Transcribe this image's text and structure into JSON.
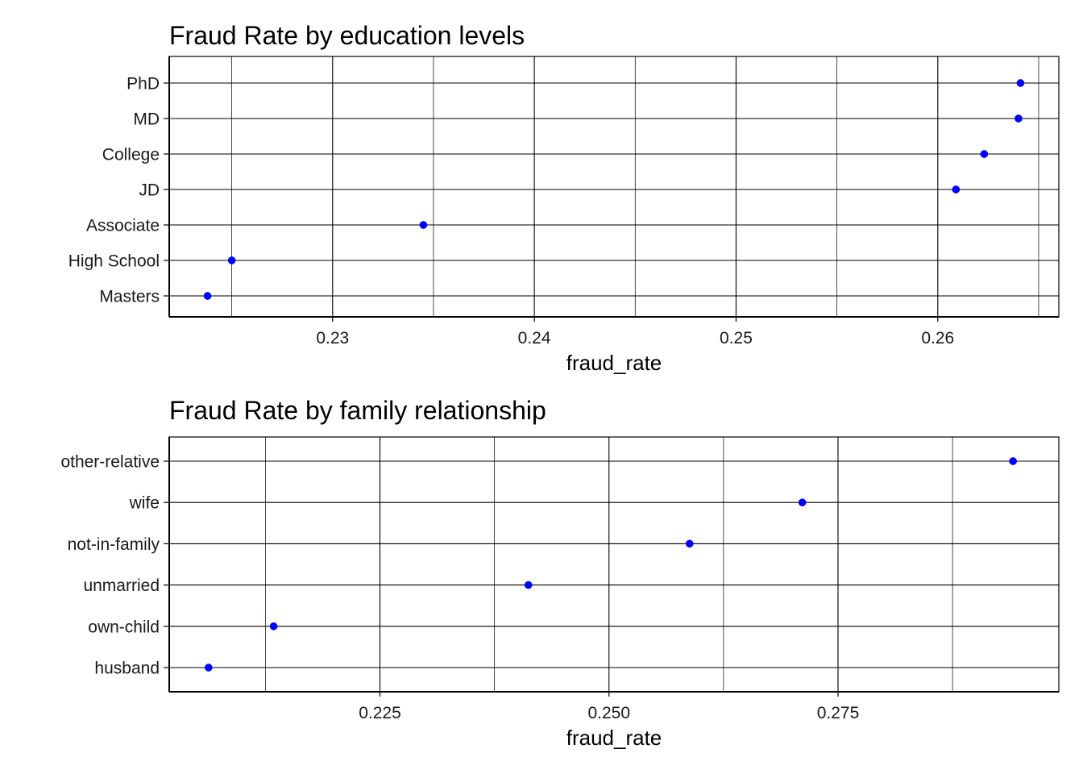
{
  "chart_data": [
    {
      "type": "scatter",
      "title": "Fraud Rate by education levels",
      "xlabel": "fraud_rate",
      "ylabel": "",
      "point_color": "#0000ff",
      "categories": [
        "Masters",
        "High School",
        "Associate",
        "JD",
        "College",
        "MD",
        "PhD"
      ],
      "values": [
        0.2238,
        0.225,
        0.2345,
        0.2609,
        0.2623,
        0.264,
        0.2641
      ],
      "xlim": [
        0.2219,
        0.266
      ],
      "x_ticks": [
        0.23,
        0.24,
        0.25,
        0.26
      ],
      "x_tick_labels": [
        "0.23",
        "0.24",
        "0.25",
        "0.26"
      ],
      "grid": true
    },
    {
      "type": "scatter",
      "title": "Fraud Rate by family relationship",
      "xlabel": "fraud_rate",
      "ylabel": "",
      "point_color": "#0000ff",
      "categories": [
        "husband",
        "own-child",
        "unmarried",
        "not-in-family",
        "wife",
        "other-relative"
      ],
      "values": [
        0.2063,
        0.2134,
        0.2412,
        0.2588,
        0.2711,
        0.2941
      ],
      "xlim": [
        0.202,
        0.2991
      ],
      "x_ticks": [
        0.225,
        0.25,
        0.275
      ],
      "x_tick_labels": [
        "0.225",
        "0.250",
        "0.275"
      ],
      "grid": true
    }
  ]
}
